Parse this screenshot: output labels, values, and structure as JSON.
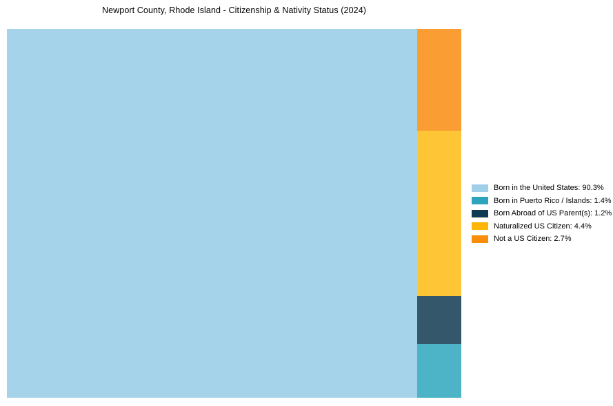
{
  "title": "Newport County, Rhode Island - Citizenship & Nativity Status (2024)",
  "chart_data": {
    "type": "treemap",
    "title": "Newport County, Rhode Island - Citizenship & Nativity Status (2024)",
    "unit": "%",
    "categories": [
      "Born in the United States",
      "Born in Puerto Rico / Islands",
      "Born Abroad of US Parent(s)",
      "Naturalized US Citizen",
      "Not a US Citizen"
    ],
    "values": [
      90.3,
      1.4,
      1.2,
      4.4,
      2.7
    ],
    "legend_position": "right-center",
    "layout_hint": "single large block on left for 'Born in the United States'; right column stacked top-to-bottom: Not a US Citizen, Naturalized US Citizen, Born Abroad of US Parent(s), Born in Puerto Rico / Islands",
    "grid": false
  },
  "segments": {
    "born_us": {
      "label": "Born in the United States",
      "pct": "90.3%",
      "fill": "#a5d3ea"
    },
    "puerto_rico": {
      "label": "Born in Puerto Rico / Islands",
      "pct": "1.4%",
      "fill": "#4db3c6"
    },
    "born_abroad": {
      "label": "Born Abroad of US Parent(s)",
      "pct": "1.2%",
      "fill": "#35576b"
    },
    "naturalized": {
      "label": "Naturalized US Citizen",
      "pct": "4.4%",
      "fill": "#fec636"
    },
    "not_citizen": {
      "label": "Not a US Citizen",
      "pct": "2.7%",
      "fill": "#fa9e33"
    }
  },
  "legend": {
    "items": [
      {
        "text": "Born in the United States: 90.3%",
        "swatch": "#9fd0e8"
      },
      {
        "text": "Born in Puerto Rico / Islands: 1.4%",
        "swatch": "#2ea3bc"
      },
      {
        "text": "Born Abroad of US Parent(s): 1.2%",
        "swatch": "#0e3a52"
      },
      {
        "text": "Naturalized US Citizen: 4.4%",
        "swatch": "#fdb607"
      },
      {
        "text": "Not a US Citizen: 2.7%",
        "swatch": "#f98d0a"
      }
    ]
  },
  "colors": {
    "background": "#ffffff",
    "title_text": "#000000",
    "legend_text": "#000000"
  }
}
